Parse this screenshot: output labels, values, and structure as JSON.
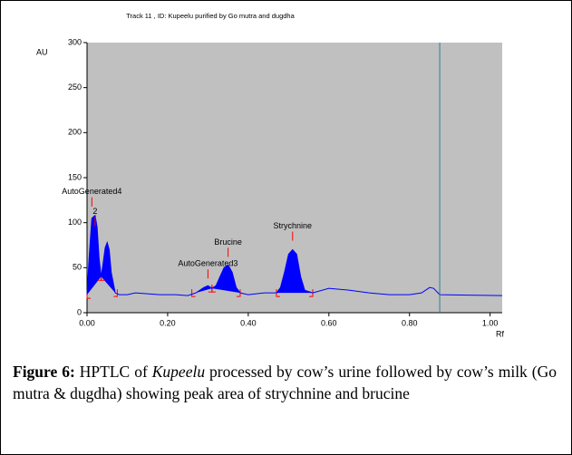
{
  "chart_data": {
    "type": "line",
    "title": "Track  11  , ID: Kupeelu purified by Go mutra and dugdha",
    "ylabel": "AU",
    "xlabel": "Rf",
    "xlim": [
      0,
      1.03
    ],
    "ylim": [
      0,
      300
    ],
    "xticks": [
      {
        "value": 0,
        "label": "0.00"
      },
      {
        "value": 0.2,
        "label": "0.20"
      },
      {
        "value": 0.4,
        "label": "0.40"
      },
      {
        "value": 0.6,
        "label": "0.60"
      },
      {
        "value": 0.8,
        "label": "0.80"
      },
      {
        "value": 1,
        "label": "1.00"
      }
    ],
    "yticks": [
      0,
      50,
      100,
      150,
      200,
      250,
      300
    ],
    "background": "#c0c0c0",
    "series": [
      {
        "color": "#0000ff",
        "fill": "#0000ff",
        "x": [
          0,
          0.005,
          0.012,
          0.02,
          0.025,
          0.03,
          0.035,
          0.04,
          0.045,
          0.05,
          0.055,
          0.06,
          0.07,
          0.08,
          0.1,
          0.12,
          0.15,
          0.18,
          0.22,
          0.25,
          0.27,
          0.29,
          0.3,
          0.31,
          0.32,
          0.33,
          0.34,
          0.35,
          0.36,
          0.37,
          0.38,
          0.4,
          0.44,
          0.47,
          0.48,
          0.49,
          0.5,
          0.51,
          0.52,
          0.53,
          0.54,
          0.56,
          0.6,
          0.65,
          0.7,
          0.75,
          0.8,
          0.83,
          0.85,
          0.86,
          0.875,
          1.03
        ],
        "values": [
          20,
          60,
          105,
          108,
          95,
          60,
          40,
          55,
          72,
          78,
          70,
          45,
          22,
          20,
          20,
          22,
          21,
          20,
          20,
          19,
          22,
          28,
          30,
          27,
          30,
          40,
          50,
          53,
          45,
          28,
          22,
          20,
          22,
          22,
          28,
          45,
          65,
          70,
          65,
          40,
          25,
          22,
          27,
          25,
          22,
          20,
          20,
          22,
          28,
          27,
          20,
          19
        ]
      }
    ],
    "integration_ranges": [
      [
        0,
        0.035
      ],
      [
        0.035,
        0.075
      ],
      [
        0.26,
        0.31
      ],
      [
        0.31,
        0.38
      ],
      [
        0.47,
        0.56
      ]
    ],
    "marker_x": 0.875,
    "annotations": [
      {
        "text": "AutoGenerated4",
        "x": 0.012,
        "y": 118
      },
      {
        "text": "2",
        "x": 0.02,
        "y": 96
      },
      {
        "text": "Brucine",
        "x": 0.35,
        "y": 62
      },
      {
        "text": "AutoGenerated3",
        "x": 0.3,
        "y": 38
      },
      {
        "text": "Strychnine",
        "x": 0.51,
        "y": 80
      }
    ]
  },
  "caption": {
    "label": "Figure 6:",
    "part1": " HPTLC of ",
    "italic": "Kupeelu",
    "part2": " processed by cow’s urine followed by cow’s milk (Go mutra & dugdha) showing peak area of strychnine and brucine"
  }
}
